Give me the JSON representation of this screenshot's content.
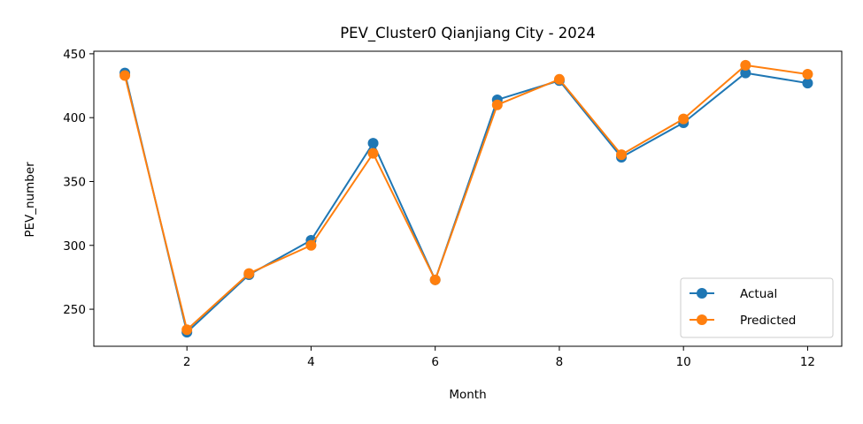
{
  "chart_data": {
    "type": "line",
    "title": "PEV_Cluster0 Qianjiang City - 2024",
    "xlabel": "Month",
    "ylabel": "PEV_number",
    "x": [
      1,
      2,
      3,
      4,
      5,
      6,
      7,
      8,
      9,
      10,
      11,
      12
    ],
    "xlim": [
      0.5,
      12.55
    ],
    "ylim": [
      221,
      452
    ],
    "xticks": [
      2,
      4,
      6,
      8,
      10,
      12
    ],
    "yticks": [
      250,
      300,
      350,
      400,
      450
    ],
    "grid": false,
    "legend_position": "lower-right",
    "series": [
      {
        "name": "Actual",
        "color": "#1f77b4",
        "values": [
          435,
          232,
          277,
          304,
          380,
          273,
          414,
          429,
          369,
          396,
          435,
          427
        ]
      },
      {
        "name": "Predicted",
        "color": "#ff7f0e",
        "values": [
          433,
          234,
          278,
          300,
          372,
          273,
          410,
          430,
          371,
          399,
          441,
          434
        ]
      }
    ]
  }
}
